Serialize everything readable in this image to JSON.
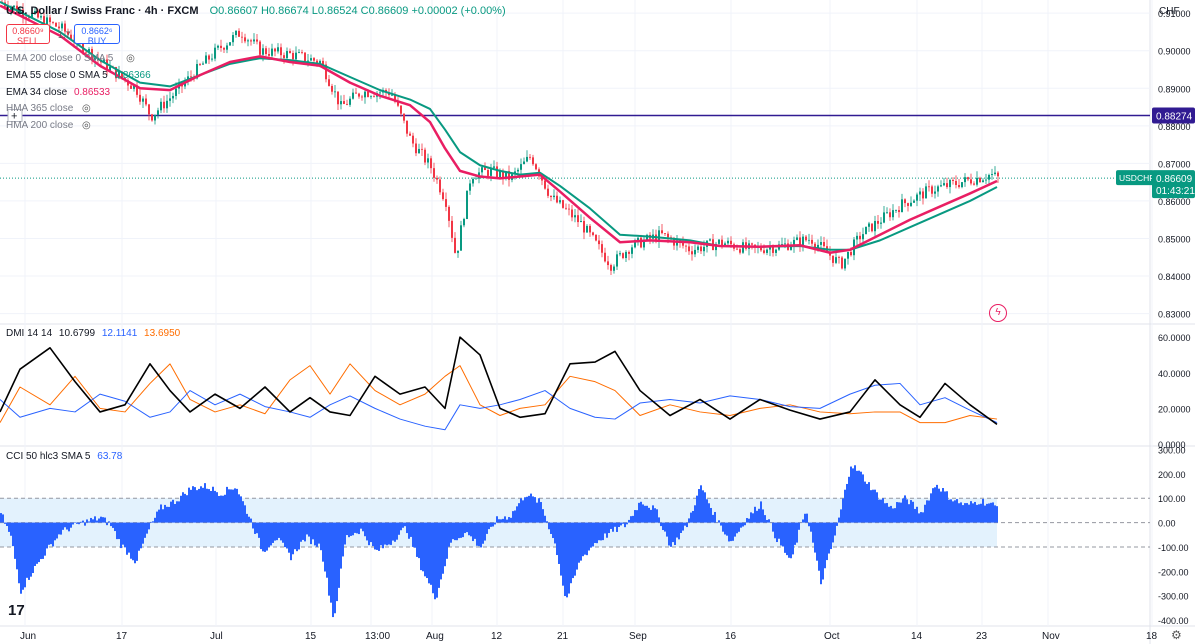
{
  "header": {
    "symbol": "U.S. Dollar / Swiss Franc · 4h · FXCM",
    "ohlc": "O0.86607 H0.86674 L0.86524 C0.86609 +0.00002 (+0.00%)",
    "currency": "CHF"
  },
  "trade": {
    "sell_price": "0.8660⁹",
    "sell_label": "SELL",
    "spread": "1.7",
    "buy_price": "0.8662⁶",
    "buy_label": "BUY"
  },
  "indicators": [
    {
      "label": "EMA 200 close 0 SMA 5",
      "value": "",
      "color": "#bdbdbd"
    },
    {
      "label": "EMA 55 close 0 SMA 5",
      "value": "0.86366",
      "color": "#089981"
    },
    {
      "label": "EMA 34 close",
      "value": "0.86533",
      "color": "#e91e63"
    },
    {
      "label": "HMA 365 close",
      "value": "",
      "color": "#bdbdbd"
    },
    {
      "label": "HMA 200 close",
      "value": "",
      "color": "#bdbdbd"
    }
  ],
  "price_axis": {
    "ticks": [
      "0.91000",
      "0.90000",
      "0.89000",
      "0.88000",
      "0.87000",
      "0.86000",
      "0.85000",
      "0.84000",
      "0.83000"
    ],
    "hline_label": "0.88274",
    "symbol_tag": "USDCHF",
    "last_price": "0.86609",
    "countdown": "01:43:21"
  },
  "dmi": {
    "title": "DMI 14 14",
    "adx": "10.6799",
    "plus_di": "12.1141",
    "minus_di": "13.6950",
    "ticks": [
      "60.0000",
      "40.0000",
      "20.0000",
      "0.0000"
    ]
  },
  "cci": {
    "title": "CCI 50 hlc3 SMA 5",
    "value": "63.78",
    "ticks": [
      "300.00",
      "200.00",
      "100.00",
      "0.00",
      "-100.00",
      "-200.00",
      "-300.00",
      "-400.00"
    ]
  },
  "time_axis": [
    "Jun",
    "17",
    "Jul",
    "15",
    "13:00",
    "Aug",
    "12",
    "21",
    "Sep",
    "16",
    "Oct",
    "14",
    "23",
    "Nov",
    "18"
  ],
  "colors": {
    "up": "#089981",
    "down": "#f23645",
    "ema34": "#e91e63",
    "ema55": "#089981",
    "hline": "#311b92",
    "adx": "#000000",
    "plus_di": "#2962ff",
    "minus_di": "#ff6d00",
    "cci": "#2962ff"
  },
  "chart_data": {
    "type": "candlestick",
    "instrument": "USDCHF",
    "timeframe": "4h",
    "ylim": [
      0.8275,
      0.9135
    ],
    "hline": 0.88274,
    "price_path": {
      "x": [
        0,
        60,
        100,
        135,
        150,
        175,
        200,
        220,
        240,
        260,
        290,
        320,
        340,
        360,
        390,
        410,
        430,
        445,
        455,
        470,
        490,
        510,
        530,
        550,
        580,
        610,
        630,
        660,
        690,
        720,
        750,
        780,
        810,
        840,
        860,
        880,
        900,
        930,
        960,
        990,
        997
      ],
      "y": [
        0.913,
        0.906,
        0.897,
        0.89,
        0.8825,
        0.889,
        0.896,
        0.901,
        0.905,
        0.9,
        0.899,
        0.897,
        0.885,
        0.889,
        0.889,
        0.876,
        0.869,
        0.86,
        0.845,
        0.867,
        0.868,
        0.866,
        0.872,
        0.861,
        0.854,
        0.843,
        0.848,
        0.851,
        0.847,
        0.849,
        0.847,
        0.848,
        0.85,
        0.843,
        0.851,
        0.855,
        0.859,
        0.863,
        0.865,
        0.867,
        0.8661
      ]
    },
    "ema34": {
      "x": [
        0,
        60,
        100,
        140,
        170,
        200,
        230,
        260,
        290,
        320,
        350,
        380,
        410,
        430,
        445,
        460,
        480,
        500,
        520,
        540,
        560,
        590,
        620,
        650,
        690,
        720,
        760,
        800,
        830,
        850,
        880,
        910,
        940,
        970,
        997
      ],
      "y": [
        0.912,
        0.904,
        0.896,
        0.89,
        0.8895,
        0.8935,
        0.897,
        0.8985,
        0.897,
        0.896,
        0.8915,
        0.888,
        0.8855,
        0.881,
        0.874,
        0.868,
        0.8665,
        0.866,
        0.8665,
        0.867,
        0.8625,
        0.8555,
        0.849,
        0.8495,
        0.849,
        0.848,
        0.8478,
        0.8482,
        0.8462,
        0.847,
        0.851,
        0.855,
        0.8585,
        0.862,
        0.8653
      ]
    },
    "ema55": {
      "x": [
        0,
        60,
        100,
        140,
        170,
        200,
        230,
        260,
        290,
        320,
        350,
        380,
        410,
        430,
        445,
        460,
        480,
        500,
        520,
        540,
        560,
        590,
        620,
        650,
        690,
        720,
        760,
        800,
        830,
        850,
        880,
        910,
        940,
        970,
        997
      ],
      "y": [
        0.913,
        0.905,
        0.8975,
        0.8915,
        0.8905,
        0.8935,
        0.8965,
        0.898,
        0.8975,
        0.8965,
        0.893,
        0.8895,
        0.887,
        0.8845,
        0.879,
        0.873,
        0.8695,
        0.868,
        0.867,
        0.8675,
        0.864,
        0.858,
        0.851,
        0.8505,
        0.8495,
        0.848,
        0.8478,
        0.848,
        0.847,
        0.847,
        0.8495,
        0.853,
        0.8565,
        0.86,
        0.8637
      ]
    },
    "dmi": {
      "ylim": [
        0,
        64
      ],
      "adx_last": 10.6799,
      "plus_di_last": 12.1141,
      "minus_di_last": 13.695,
      "adx": {
        "x": [
          0,
          20,
          50,
          75,
          100,
          125,
          150,
          170,
          190,
          215,
          240,
          265,
          290,
          310,
          330,
          350,
          375,
          400,
          425,
          445,
          460,
          480,
          500,
          520,
          545,
          570,
          595,
          615,
          640,
          670,
          700,
          730,
          760,
          790,
          820,
          850,
          875,
          900,
          920,
          945,
          970,
          997
        ],
        "y": [
          18,
          42,
          54,
          35,
          18,
          22,
          45,
          30,
          18,
          28,
          20,
          32,
          18,
          26,
          18,
          16,
          38,
          28,
          32,
          20,
          60,
          50,
          20,
          15,
          17,
          45,
          46,
          52,
          30,
          16,
          25,
          14,
          25,
          19,
          14,
          18,
          36,
          22,
          15,
          34,
          22,
          11
        ]
      },
      "plus_di": {
        "x": [
          0,
          20,
          50,
          75,
          100,
          125,
          150,
          170,
          190,
          215,
          240,
          265,
          290,
          310,
          330,
          350,
          375,
          400,
          425,
          445,
          460,
          480,
          500,
          520,
          545,
          570,
          595,
          615,
          640,
          670,
          700,
          730,
          760,
          790,
          820,
          850,
          875,
          900,
          920,
          945,
          970,
          997
        ],
        "y": [
          25,
          15,
          20,
          18,
          28,
          24,
          15,
          18,
          30,
          22,
          28,
          21,
          18,
          15,
          22,
          27,
          20,
          14,
          10,
          8,
          22,
          20,
          22,
          25,
          30,
          20,
          15,
          14,
          23,
          25,
          23,
          27,
          25,
          21,
          20,
          28,
          33,
          34,
          22,
          26,
          19,
          12
        ]
      },
      "minus_di": {
        "x": [
          0,
          20,
          50,
          75,
          100,
          125,
          150,
          170,
          190,
          215,
          240,
          265,
          290,
          310,
          330,
          350,
          375,
          400,
          425,
          445,
          460,
          480,
          500,
          520,
          545,
          570,
          595,
          615,
          640,
          670,
          700,
          730,
          760,
          790,
          820,
          850,
          875,
          900,
          920,
          945,
          970,
          997
        ],
        "y": [
          12,
          32,
          22,
          38,
          20,
          18,
          34,
          45,
          25,
          18,
          22,
          17,
          36,
          44,
          28,
          45,
          30,
          22,
          28,
          38,
          44,
          22,
          16,
          20,
          22,
          38,
          35,
          30,
          16,
          22,
          18,
          16,
          20,
          22,
          18,
          17,
          18,
          18,
          12,
          12,
          16,
          14
        ]
      }
    },
    "cci": {
      "ylim": [
        -420,
        310
      ],
      "last": 63.78,
      "x": [
        0,
        10,
        20,
        30,
        45,
        60,
        75,
        90,
        100,
        110,
        120,
        135,
        150,
        160,
        175,
        190,
        205,
        220,
        235,
        250,
        262,
        275,
        290,
        305,
        320,
        333,
        345,
        360,
        375,
        390,
        405,
        420,
        435,
        450,
        465,
        480,
        495,
        510,
        525,
        540,
        555,
        565,
        580,
        595,
        610,
        625,
        640,
        655,
        670,
        685,
        700,
        715,
        730,
        745,
        760,
        775,
        790,
        805,
        820,
        835,
        850,
        860,
        875,
        890,
        905,
        920,
        935,
        950,
        965,
        980,
        997
      ],
      "y": [
        40,
        -60,
        -280,
        -210,
        -120,
        -40,
        -10,
        10,
        20,
        -10,
        -90,
        -160,
        -10,
        60,
        90,
        140,
        150,
        120,
        150,
        10,
        -120,
        -60,
        -140,
        -60,
        -100,
        -400,
        -60,
        -30,
        -120,
        -80,
        -20,
        -180,
        -310,
        -80,
        -40,
        -100,
        10,
        30,
        120,
        80,
        -100,
        -320,
        -150,
        -80,
        -40,
        -10,
        90,
        50,
        -100,
        -20,
        150,
        20,
        -80,
        10,
        80,
        -60,
        -160,
        60,
        -250,
        -40,
        240,
        200,
        120,
        60,
        100,
        40,
        160,
        100,
        70,
        90,
        63.78
      ]
    },
    "xlabels": [
      "Jun",
      "17",
      "Jul",
      "15",
      "13:00",
      "Aug",
      "12",
      "21",
      "Sep",
      "16",
      "Oct",
      "14",
      "23",
      "Nov",
      "18"
    ]
  }
}
